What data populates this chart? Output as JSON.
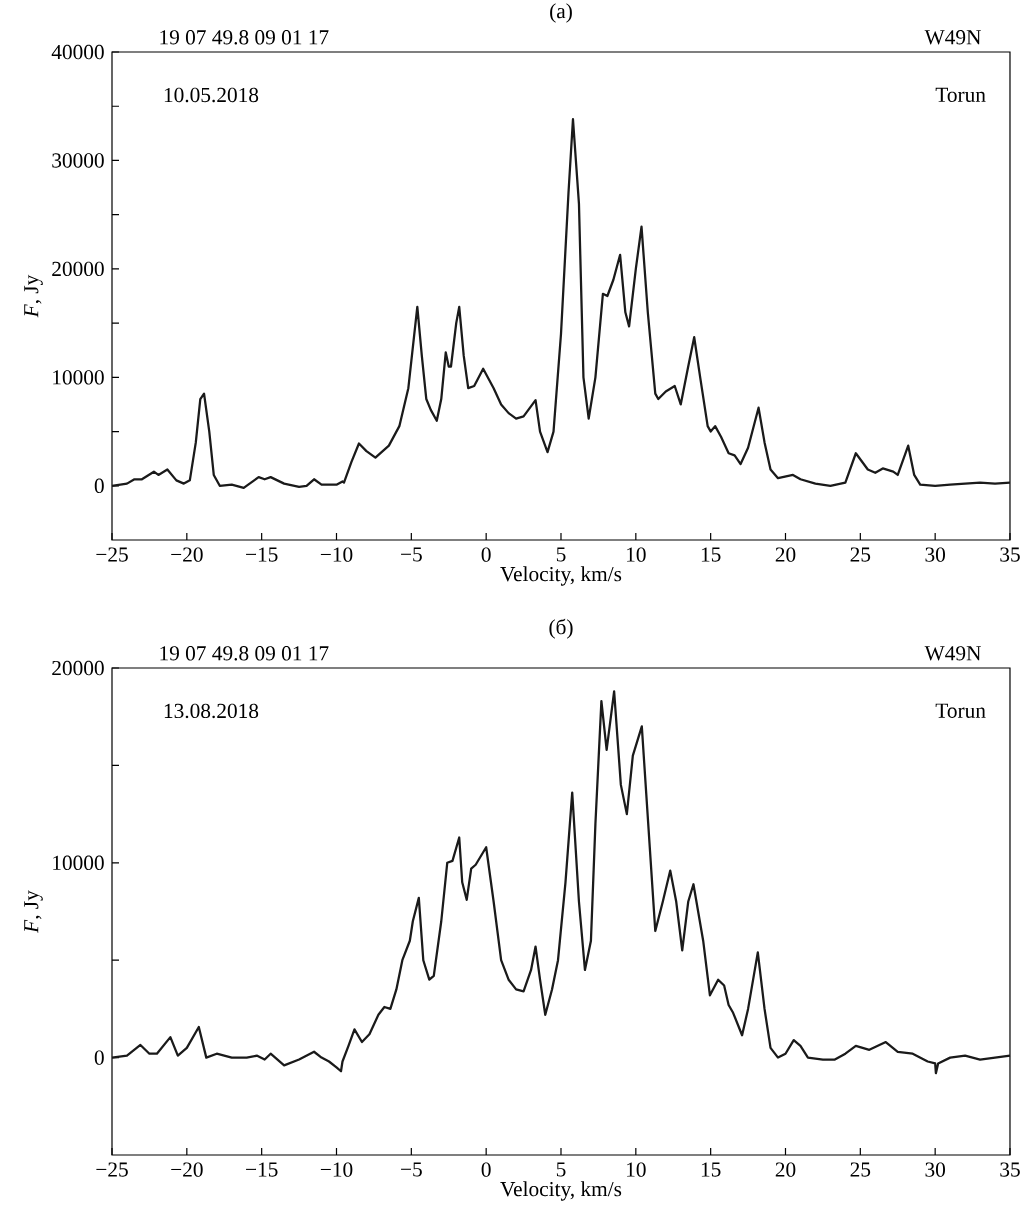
{
  "chart_data": [
    {
      "type": "line",
      "title": "(a)",
      "xlabel": "Velocity, km/s",
      "ylabel": "*F*, Jy",
      "color": "#1a1a1a",
      "annotations": [
        "19 07 49.8  09 01 17",
        "W49N",
        "10.05.2018",
        "Torun"
      ],
      "xlim": [
        -25,
        35
      ],
      "ylim": [
        -5000,
        40000
      ],
      "xticks": [
        {
          "value": -25,
          "label": "−25"
        },
        {
          "value": -20,
          "label": "−20"
        },
        {
          "value": -15,
          "label": "−15"
        },
        {
          "value": -10,
          "label": "−10"
        },
        {
          "value": -5,
          "label": "−5"
        },
        0,
        5,
        10,
        15,
        20,
        25,
        30,
        35
      ],
      "yticks": [
        0,
        {
          "value": 5000,
          "label": null
        },
        10000,
        {
          "value": 15000,
          "label": null
        },
        20000,
        {
          "value": 25000,
          "label": null
        },
        30000,
        {
          "value": 35000,
          "label": null
        },
        40000
      ],
      "x": [
        -25,
        -24,
        -23.5,
        -23,
        -22.2,
        -21.9,
        -21.3,
        -20.7,
        -20.2,
        -19.8,
        -19.4,
        -19.1,
        -18.85,
        -18.5,
        -18.2,
        -17.8,
        -17,
        -16.2,
        -15.5,
        -15.2,
        -14.8,
        -14.4,
        -13.5,
        -12.5,
        -12,
        -11.5,
        -11,
        -10,
        -9.6,
        -9.5,
        -9,
        -8.5,
        -8,
        -7.4,
        -6.5,
        -5.8,
        -5.2,
        -4.8,
        -4.6,
        -4.3,
        -4,
        -3.7,
        -3.3,
        -3,
        -2.7,
        -2.5,
        -2.35,
        -2,
        -1.8,
        -1.5,
        -1.2,
        -0.8,
        -0.2,
        0.5,
        1,
        1.5,
        2,
        2.5,
        3.3,
        3.6,
        4.1,
        4.5,
        5,
        5.5,
        5.8,
        6.2,
        6.5,
        6.85,
        7.3,
        7.8,
        8.1,
        8.5,
        8.95,
        9.3,
        9.55,
        10,
        10.38,
        10.8,
        11.3,
        11.5,
        12,
        12.6,
        13,
        13.5,
        13.9,
        14.3,
        14.8,
        15,
        15.3,
        15.7,
        16.2,
        16.6,
        17,
        17.5,
        18.2,
        18.6,
        19,
        19.5,
        20.5,
        21,
        22,
        23,
        24,
        24.7,
        25.5,
        26,
        26.5,
        27.2,
        27.5,
        28.2,
        28.6,
        29,
        30,
        31,
        32,
        33,
        34,
        35
      ],
      "values": [
        0,
        200,
        600,
        600,
        1300,
        1000,
        1500,
        500,
        200,
        500,
        4000,
        8000,
        8500,
        5000,
        1000,
        0,
        100,
        -200,
        500,
        800,
        600,
        800,
        200,
        -100,
        0,
        600,
        100,
        100,
        400,
        300,
        2200,
        3900,
        3200,
        2600,
        3700,
        5500,
        9000,
        14000,
        16500,
        12000,
        8000,
        7000,
        6000,
        8000,
        12300,
        11000,
        11000,
        15000,
        16500,
        12000,
        9000,
        9200,
        10800,
        9000,
        7500,
        6700,
        6200,
        6400,
        7900,
        5000,
        3100,
        5000,
        14000,
        27000,
        33800,
        26000,
        10000,
        6200,
        10000,
        17700,
        17500,
        19000,
        21300,
        16000,
        14700,
        20000,
        23900,
        16000,
        8500,
        8000,
        8700,
        9200,
        7500,
        11000,
        13700,
        10000,
        5500,
        5000,
        5500,
        4500,
        3000,
        2800,
        2000,
        3500,
        7200,
        4000,
        1500,
        700,
        1000,
        600,
        200,
        0,
        300,
        3000,
        1500,
        1200,
        1600,
        1300,
        1000,
        3700,
        1000,
        100,
        0,
        100,
        200,
        300,
        200,
        300
      ]
    },
    {
      "type": "line",
      "title": "(б)",
      "xlabel": "Velocity, km/s",
      "ylabel": "*F*, Jy",
      "color": "#1a1a1a",
      "annotations": [
        "19 07 49.8  09 01 17",
        "W49N",
        "13.08.2018",
        "Torun"
      ],
      "xlim": [
        -25,
        35
      ],
      "ylim": [
        -5000,
        20000
      ],
      "xticks": [
        {
          "value": -25,
          "label": "−25"
        },
        {
          "value": -20,
          "label": "−20"
        },
        {
          "value": -15,
          "label": "−15"
        },
        {
          "value": -10,
          "label": "−10"
        },
        {
          "value": -5,
          "label": "−5"
        },
        0,
        5,
        10,
        15,
        20,
        25,
        30,
        35
      ],
      "yticks": [
        0,
        {
          "value": 5000,
          "label": null
        },
        10000,
        {
          "value": 15000,
          "label": null
        },
        20000
      ],
      "x": [
        -25,
        -24,
        -23.1,
        -22.5,
        -22,
        -21.1,
        -20.6,
        -20,
        -19.2,
        -18.7,
        -18,
        -17,
        -16,
        -15.3,
        -14.8,
        -14.4,
        -13.5,
        -12.5,
        -11.5,
        -11,
        -10.5,
        -10,
        -9.7,
        -9.6,
        -9.2,
        -8.8,
        -8.3,
        -7.8,
        -7.2,
        -6.8,
        -6.4,
        -6,
        -5.6,
        -5.1,
        -4.9,
        -4.5,
        -4.2,
        -3.8,
        -3.5,
        -3,
        -2.6,
        -2.25,
        -1.8,
        -1.6,
        -1.3,
        -1,
        -0.7,
        0,
        0.5,
        1,
        1.5,
        2,
        2.5,
        3,
        3.3,
        3.6,
        3.95,
        4.4,
        4.8,
        5.3,
        5.75,
        6.2,
        6.6,
        7,
        7.3,
        7.7,
        8.05,
        8.55,
        9,
        9.4,
        9.8,
        10,
        10.4,
        11,
        11.3,
        11.8,
        12.3,
        12.7,
        13.1,
        13.5,
        13.85,
        14.5,
        14.95,
        15.5,
        15.9,
        16.2,
        16.5,
        17.1,
        17.5,
        18.15,
        18.6,
        19,
        19.5,
        20,
        20.55,
        21,
        21.5,
        22.5,
        23.3,
        24,
        24.7,
        25.6,
        26.7,
        27.5,
        28.5,
        29.5,
        30,
        30.05,
        30.2,
        31,
        32,
        33,
        34,
        35
      ],
      "values": [
        0,
        100,
        650,
        200,
        200,
        1050,
        100,
        500,
        1570,
        0,
        200,
        0,
        0,
        100,
        -100,
        200,
        -400,
        -100,
        300,
        0,
        -200,
        -500,
        -700,
        -200,
        600,
        1450,
        800,
        1200,
        2200,
        2600,
        2500,
        3500,
        5000,
        6000,
        7000,
        8200,
        5000,
        4000,
        4200,
        7000,
        10000,
        10100,
        11300,
        9000,
        8100,
        9700,
        9900,
        10800,
        8000,
        5000,
        4000,
        3500,
        3400,
        4500,
        5700,
        4000,
        2200,
        3500,
        5000,
        9000,
        13600,
        8000,
        4500,
        6000,
        12000,
        18300,
        15800,
        18800,
        14000,
        12500,
        15500,
        16000,
        17000,
        10000,
        6500,
        8000,
        9600,
        8000,
        5500,
        8000,
        8900,
        6000,
        3200,
        4000,
        3700,
        2700,
        2300,
        1150,
        2500,
        5400,
        2500,
        500,
        0,
        200,
        900,
        600,
        0,
        -100,
        -100,
        200,
        600,
        400,
        800,
        300,
        200,
        -200,
        -300,
        -800,
        -300,
        0,
        100,
        -100,
        0,
        100
      ]
    }
  ]
}
